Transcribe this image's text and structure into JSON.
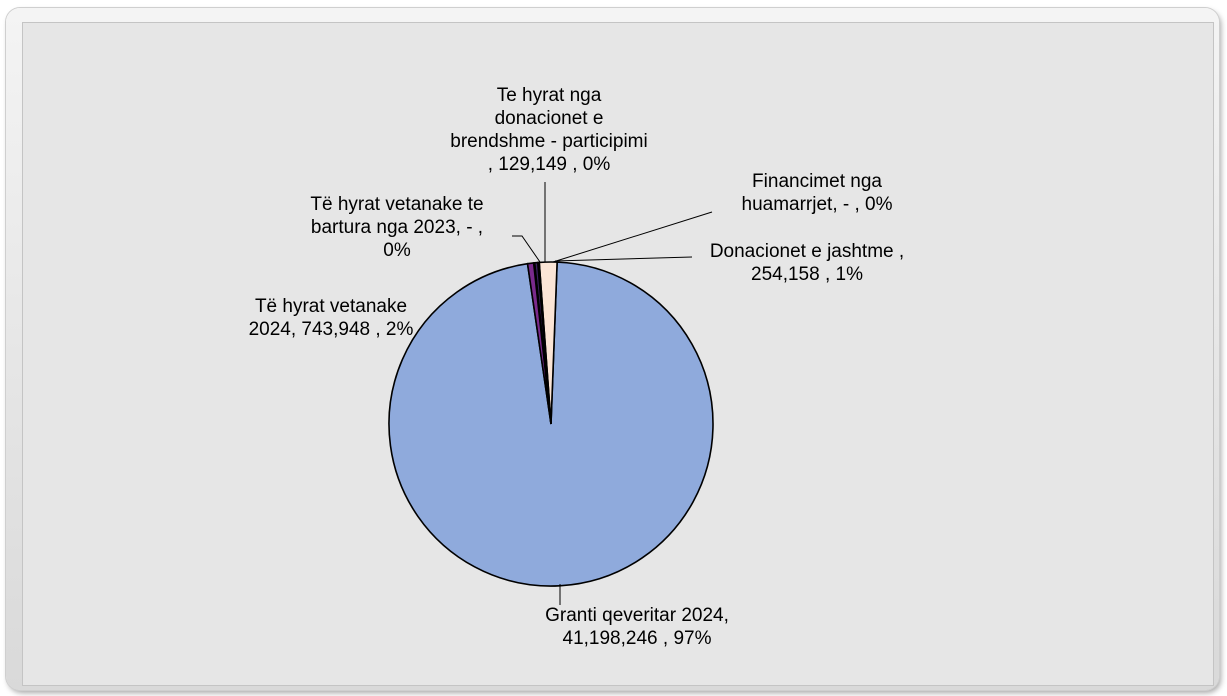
{
  "chart_data": {
    "type": "pie",
    "title": "",
    "colors": {
      "background": "#e6e6e6",
      "frame": "#f0f0f0"
    },
    "slices": [
      {
        "label": [
          "Granti qeveritar 2024,",
          "41,198,246 , 97%"
        ],
        "category": "Granti qeveritar 2024",
        "value": 41198246,
        "percent": "97%",
        "color": "#8faadc"
      },
      {
        "label": [
          "Të hyrat vetanake",
          "2024,  743,948 , 2%"
        ],
        "category": "Të hyrat vetanake 2024",
        "value": 743948,
        "percent": "2%",
        "color": "#fbe5d6"
      },
      {
        "label": [
          "Të hyrat vetanake  te",
          "bartura nga  2023,  -    ,",
          "0%"
        ],
        "category": "Të hyrat vetanake te bartura nga 2023",
        "value": 0,
        "percent": "0%",
        "color": "#cfcfcf"
      },
      {
        "label": [
          "Te hyrat nga",
          "donacionet e",
          "brendshme  - participimi",
          ",  129,149 , 0%"
        ],
        "category": "Te hyrat nga donacionet e brendshme - participimi",
        "value": 129149,
        "percent": "0%",
        "color": "#3a1f5d"
      },
      {
        "label": [
          "Financimet nga",
          "huamarrjet,  -   , 0%"
        ],
        "category": "Financimet nga huamarrjet",
        "value": 0,
        "percent": "0%",
        "color": "#555555"
      },
      {
        "label": [
          "Donacionet e jashtme  ,",
          "254,158  , 1%"
        ],
        "category": "Donacionet e jashtme",
        "value": 254158,
        "percent": "1%",
        "color": "#7a2a8c"
      }
    ]
  }
}
